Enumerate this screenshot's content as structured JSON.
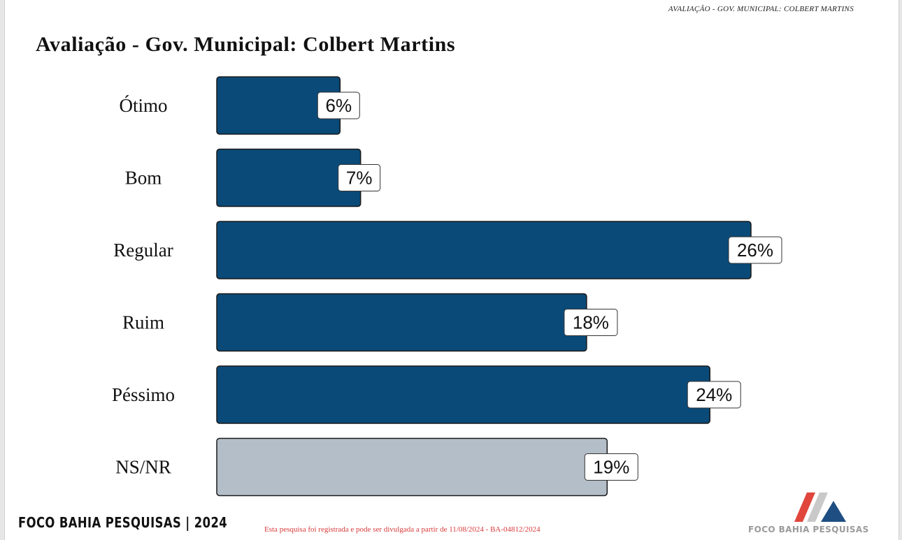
{
  "header_tag": "AVALIAÇÃO - GOV. MUNICIPAL: COLBERT MARTINS",
  "footer": {
    "brand": "FOCO BAHIA PESQUISAS | 2024",
    "note": "Esta pesquisa foi registrada e pode ser divulgada a partir de 11/08/2024 - BA-04812/2024",
    "logo_text": "FOCO BAHIA PESQUISAS"
  },
  "colors": {
    "bar": "#0a4a78",
    "bar_neutral": "#b3bec8",
    "logo_red": "#e0463c",
    "logo_blue": "#1f4f82",
    "logo_grey": "#c9c9c9"
  },
  "chart_data": {
    "type": "bar",
    "orientation": "horizontal",
    "title": "Avaliação - Gov. Municipal: Colbert Martins",
    "categories": [
      "Ótimo",
      "Bom",
      "Regular",
      "Ruim",
      "Péssimo",
      "NS/NR"
    ],
    "values": [
      6,
      7,
      26,
      18,
      24,
      19
    ],
    "value_labels": [
      "6%",
      "7%",
      "26%",
      "18%",
      "24%",
      "19%"
    ],
    "unit": "%",
    "xlim": [
      0,
      26
    ],
    "grid": false,
    "legend": "none"
  }
}
